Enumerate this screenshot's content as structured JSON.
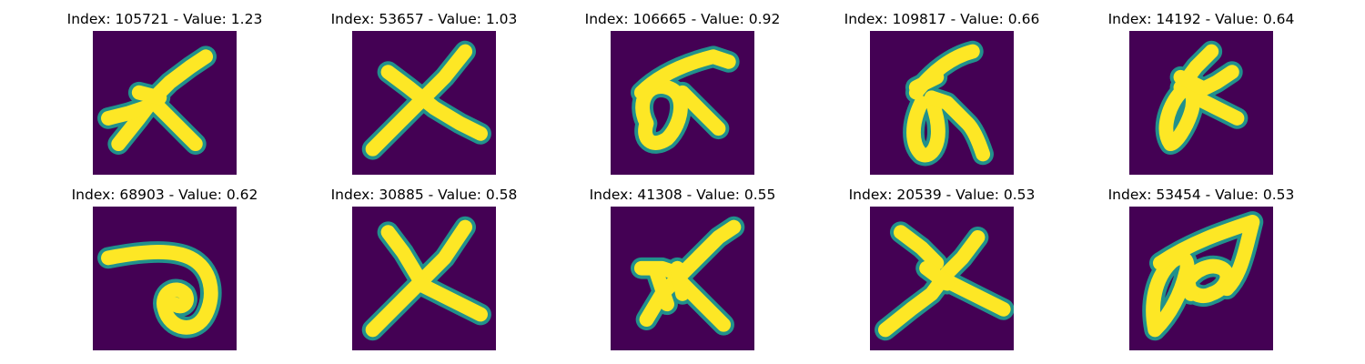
{
  "figure": {
    "colormap": "viridis",
    "background_color": "#440154",
    "stroke_color": "#fde725",
    "edge_color": "#21918c",
    "panels": [
      {
        "title": "Index: 105721 - Value: 1.23",
        "index": 105721,
        "value": 1.23,
        "glyph": "tilted-cross-with-open-arm"
      },
      {
        "title": "Index: 53657 - Value: 1.03",
        "index": 53657,
        "value": 1.03,
        "glyph": "x-cross"
      },
      {
        "title": "Index: 106665 - Value: 0.92",
        "index": 106665,
        "value": 0.92,
        "glyph": "loop-with-arch"
      },
      {
        "title": "Index: 109817 - Value: 0.66",
        "index": 109817,
        "value": 0.66,
        "glyph": "loop-with-hook"
      },
      {
        "title": "Index: 14192 - Value: 0.64",
        "index": 14192,
        "value": 0.64,
        "glyph": "thin-loop-with-branches"
      },
      {
        "title": "Index: 68903 - Value: 0.62",
        "index": 68903,
        "value": 0.62,
        "glyph": "spiral"
      },
      {
        "title": "Index: 30885 - Value: 0.58",
        "index": 30885,
        "value": 0.58,
        "glyph": "x-cross-thin"
      },
      {
        "title": "Index: 41308 - Value: 0.55",
        "index": 41308,
        "value": 0.55,
        "glyph": "arrow-shape"
      },
      {
        "title": "Index: 20539 - Value: 0.53",
        "index": 20539,
        "value": 0.53,
        "glyph": "star-cross"
      },
      {
        "title": "Index: 53454 - Value: 0.53",
        "index": 53454,
        "value": 0.53,
        "glyph": "double-loop"
      }
    ]
  }
}
